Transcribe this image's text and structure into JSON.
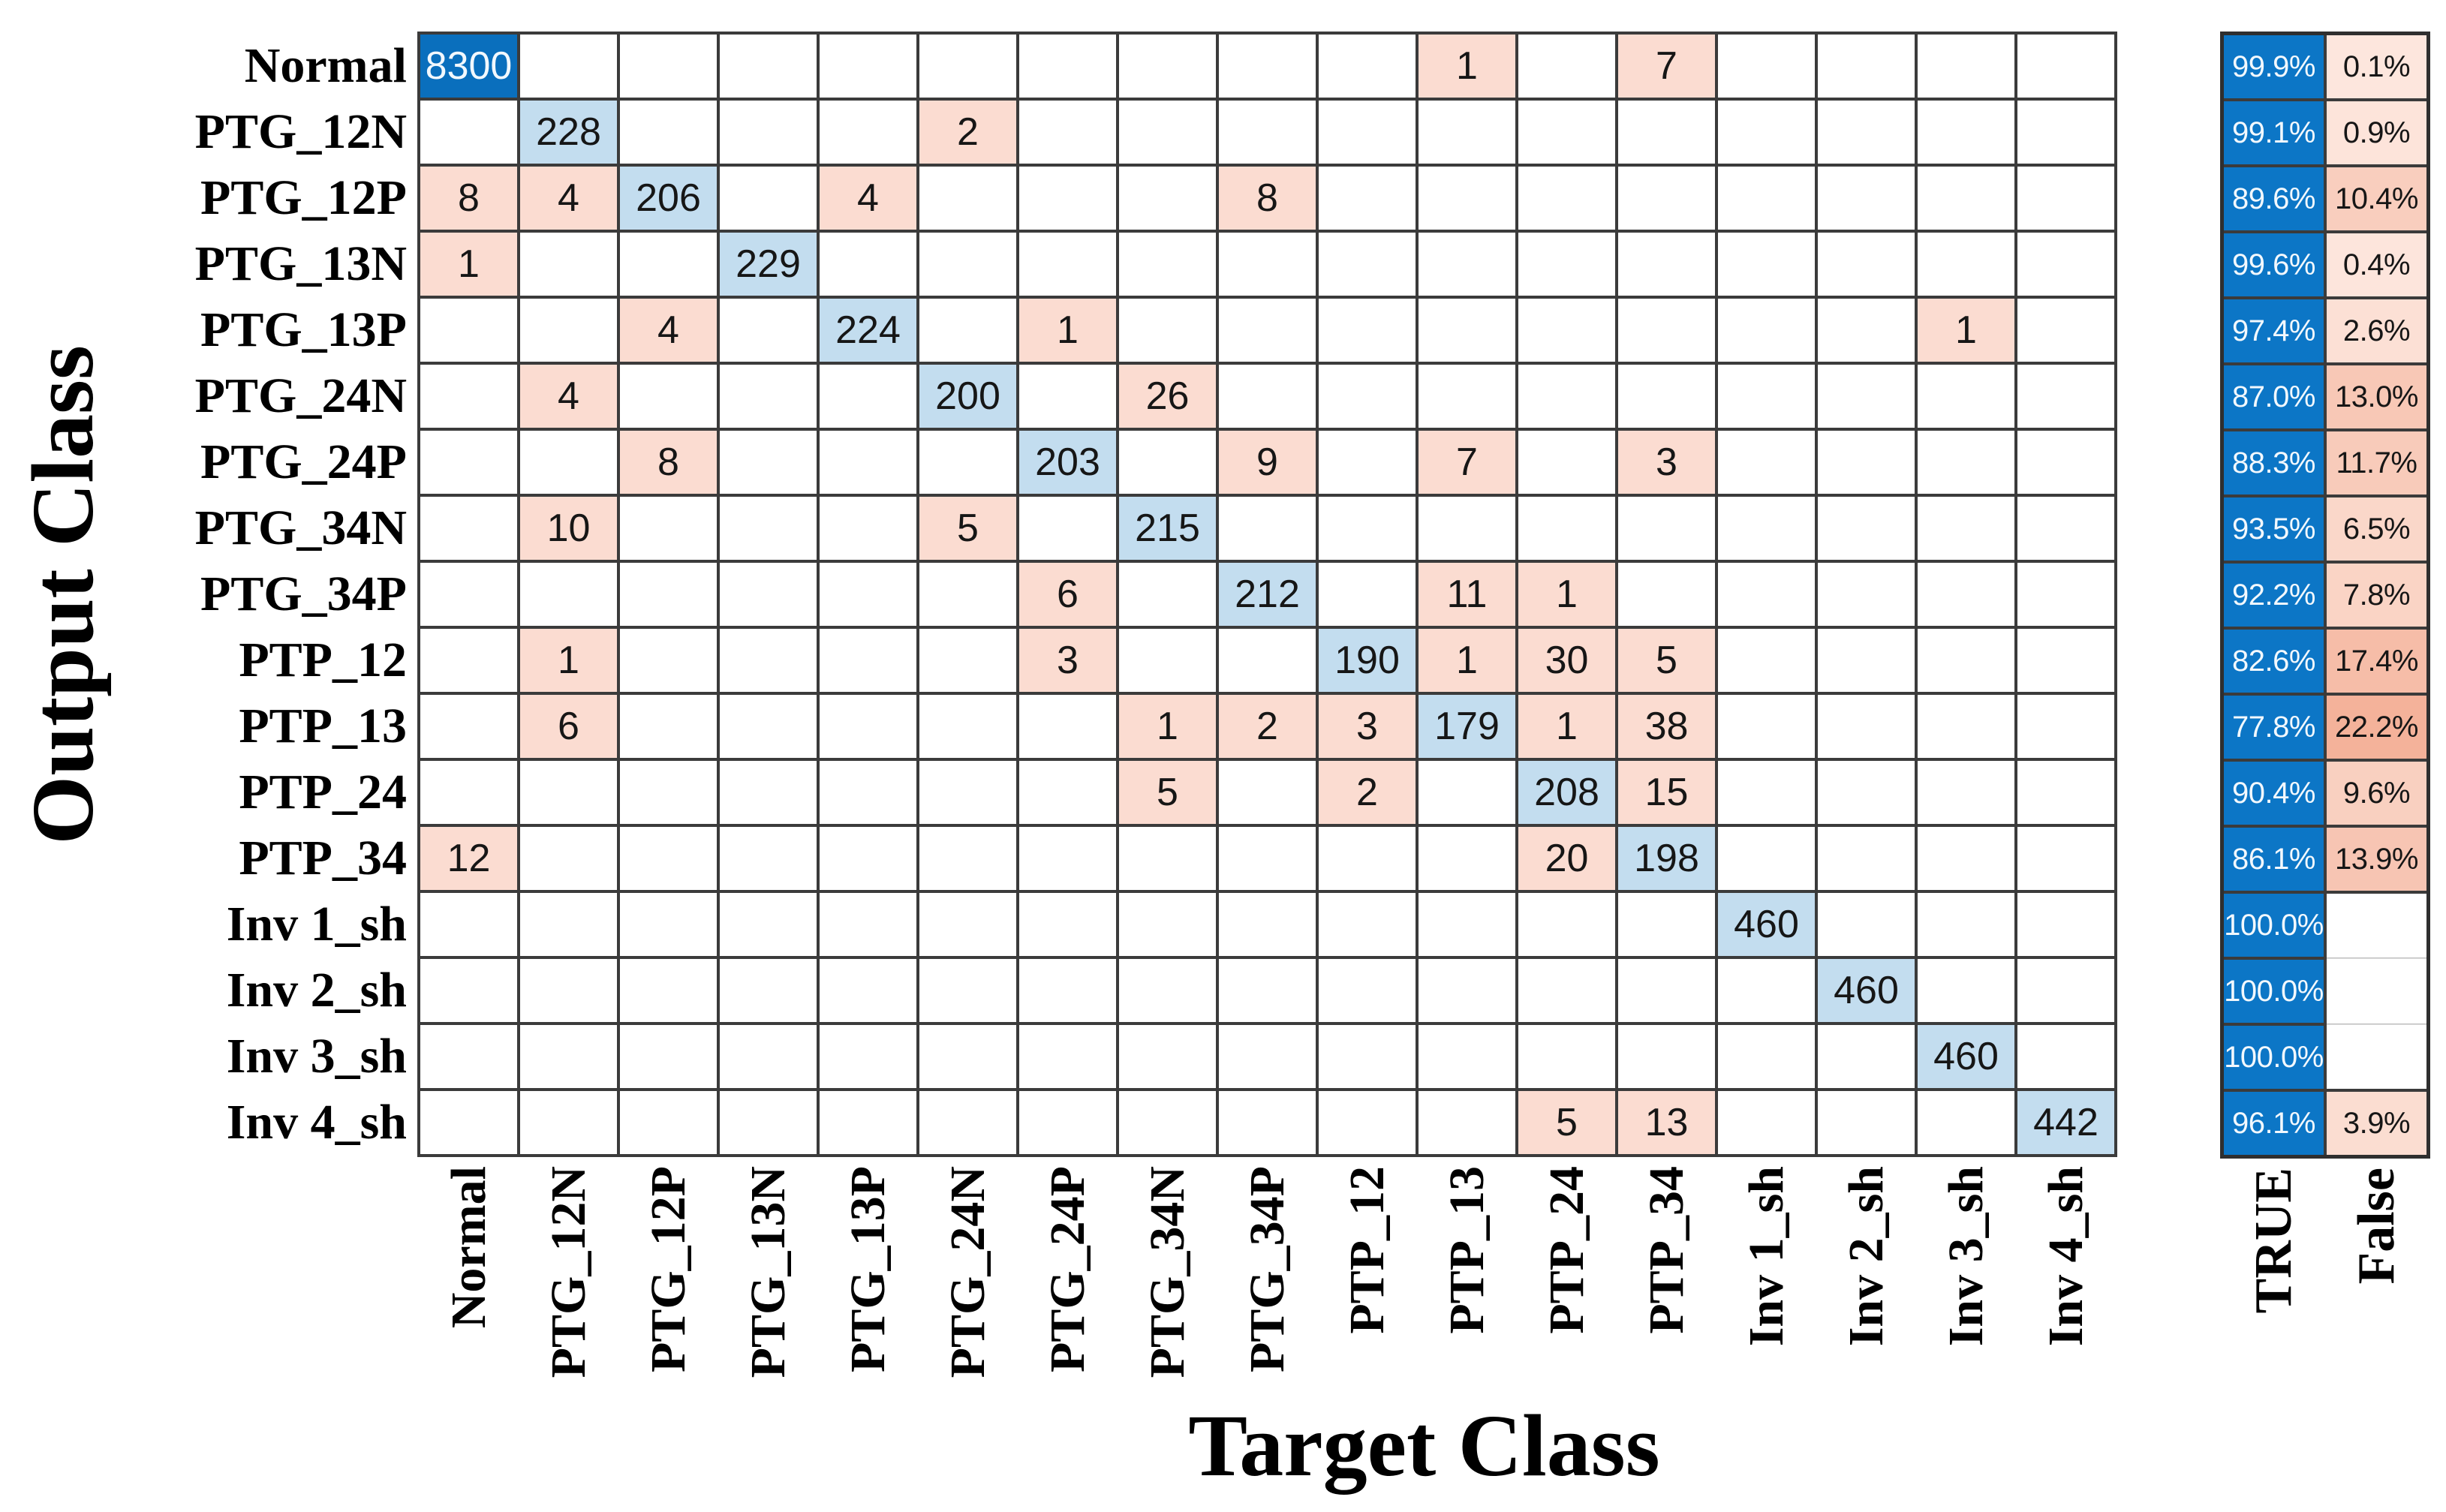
{
  "chart_data": {
    "type": "heatmap",
    "xlabel": "Target Class",
    "ylabel": "Output Class",
    "true_label": "TRUE",
    "false_label": "False",
    "classes": [
      "Normal",
      "PTG_12N",
      "PTG_12P",
      "PTG_13N",
      "PTG_13P",
      "PTG_24N",
      "PTG_24P",
      "PTG_34N",
      "PTG_34P",
      "PTP_12",
      "PTP_13",
      "PTP_24",
      "PTP_34",
      "Inv 1_sh",
      "Inv 2_sh",
      "Inv 3_sh",
      "Inv 4_sh"
    ],
    "matrix": [
      [
        8300,
        0,
        0,
        0,
        0,
        0,
        0,
        0,
        0,
        0,
        1,
        0,
        7,
        0,
        0,
        0,
        0
      ],
      [
        0,
        228,
        0,
        0,
        0,
        2,
        0,
        0,
        0,
        0,
        0,
        0,
        0,
        0,
        0,
        0,
        0
      ],
      [
        8,
        4,
        206,
        0,
        4,
        0,
        0,
        0,
        8,
        0,
        0,
        0,
        0,
        0,
        0,
        0,
        0
      ],
      [
        1,
        0,
        0,
        229,
        0,
        0,
        0,
        0,
        0,
        0,
        0,
        0,
        0,
        0,
        0,
        0,
        0
      ],
      [
        0,
        0,
        4,
        0,
        224,
        0,
        1,
        0,
        0,
        0,
        0,
        0,
        0,
        0,
        0,
        1,
        0
      ],
      [
        0,
        4,
        0,
        0,
        0,
        200,
        0,
        26,
        0,
        0,
        0,
        0,
        0,
        0,
        0,
        0,
        0
      ],
      [
        0,
        0,
        8,
        0,
        0,
        0,
        203,
        0,
        9,
        0,
        7,
        0,
        3,
        0,
        0,
        0,
        0
      ],
      [
        0,
        10,
        0,
        0,
        0,
        5,
        0,
        215,
        0,
        0,
        0,
        0,
        0,
        0,
        0,
        0,
        0
      ],
      [
        0,
        0,
        0,
        0,
        0,
        0,
        6,
        0,
        212,
        0,
        11,
        1,
        0,
        0,
        0,
        0,
        0
      ],
      [
        0,
        1,
        0,
        0,
        0,
        0,
        3,
        0,
        0,
        190,
        1,
        30,
        5,
        0,
        0,
        0,
        0
      ],
      [
        0,
        6,
        0,
        0,
        0,
        0,
        0,
        1,
        2,
        3,
        179,
        1,
        38,
        0,
        0,
        0,
        0
      ],
      [
        0,
        0,
        0,
        0,
        0,
        0,
        0,
        5,
        0,
        2,
        0,
        208,
        15,
        0,
        0,
        0,
        0
      ],
      [
        12,
        0,
        0,
        0,
        0,
        0,
        0,
        0,
        0,
        0,
        0,
        20,
        198,
        0,
        0,
        0,
        0
      ],
      [
        0,
        0,
        0,
        0,
        0,
        0,
        0,
        0,
        0,
        0,
        0,
        0,
        0,
        460,
        0,
        0,
        0
      ],
      [
        0,
        0,
        0,
        0,
        0,
        0,
        0,
        0,
        0,
        0,
        0,
        0,
        0,
        0,
        460,
        0,
        0
      ],
      [
        0,
        0,
        0,
        0,
        0,
        0,
        0,
        0,
        0,
        0,
        0,
        0,
        0,
        0,
        0,
        460,
        0
      ],
      [
        0,
        0,
        0,
        0,
        0,
        0,
        0,
        0,
        0,
        0,
        0,
        5,
        13,
        0,
        0,
        0,
        442
      ]
    ],
    "row_true_pct": [
      "99.9%",
      "99.1%",
      "89.6%",
      "99.6%",
      "97.4%",
      "87.0%",
      "88.3%",
      "93.5%",
      "92.2%",
      "82.6%",
      "77.8%",
      "90.4%",
      "86.1%",
      "100.0%",
      "100.0%",
      "100.0%",
      "96.1%"
    ],
    "row_false_pct": [
      "0.1%",
      "0.9%",
      "10.4%",
      "0.4%",
      "2.6%",
      "13.0%",
      "11.7%",
      "6.5%",
      "7.8%",
      "17.4%",
      "22.2%",
      "9.6%",
      "13.9%",
      "",
      "",
      "",
      "3.9%"
    ],
    "legend_position": "right",
    "grid": true
  },
  "colors": {
    "grid_line": "#3b3b3b",
    "diag_dark_blue": "#0a6fbd",
    "diag_light_blue": "#c3ddef",
    "error_pink": "#fbdcd1",
    "true_blue": "#0c76c6",
    "false_pink_light": "#fde6dd",
    "false_pink_strong": "#f4b29a",
    "cell_text": "#161616",
    "inverse_text": "#f2f8fd"
  }
}
